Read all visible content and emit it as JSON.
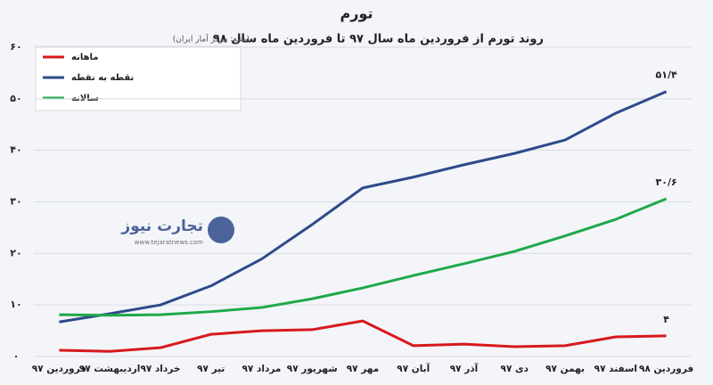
{
  "chart_data": {
    "type": "line",
    "title": "تورم",
    "subtitle": "روند تورم از فروردین ماه سال ۹۷ تا فروردین ماه سال ۹۸",
    "source": "(منبع: مرکز آمار ایران)",
    "watermark": {
      "brand": "تجارت نیوز",
      "url": "www.tejaratnews.com"
    },
    "categories": [
      "فروردین ۹۷",
      "اردیبهشت ۹۷",
      "خرداد ۹۷",
      "تیر ۹۷",
      "مرداد ۹۷",
      "شهریور ۹۷",
      "مهر ۹۷",
      "آبان ۹۷",
      "آذر ۹۷",
      "دی ۹۷",
      "بهمن ۹۷",
      "اسفند ۹۷",
      "فروردین ۹۸"
    ],
    "series": [
      {
        "name": "ماهانه",
        "color": "#d7191c",
        "values": [
          1.2,
          1.0,
          1.7,
          4.3,
          5.0,
          5.2,
          6.9,
          2.1,
          2.4,
          1.9,
          2.1,
          3.8,
          4.0
        ],
        "value_labels": [
          null,
          null,
          null,
          null,
          null,
          null,
          null,
          null,
          null,
          null,
          null,
          null,
          "۴"
        ]
      },
      {
        "name": "نقطه به نقطه",
        "color": "#2e4a8a",
        "values": [
          6.7,
          8.3,
          10.0,
          13.7,
          18.9,
          25.6,
          32.7,
          34.8,
          37.2,
          39.4,
          42.0,
          47.2,
          51.4
        ],
        "value_labels": [
          null,
          null,
          null,
          null,
          null,
          null,
          null,
          null,
          null,
          null,
          null,
          null,
          "۵۱/۴"
        ]
      },
      {
        "name": "سالانه",
        "color": "#1fa84a",
        "values": [
          8.1,
          8.0,
          8.1,
          8.7,
          9.5,
          11.2,
          13.3,
          15.7,
          18.0,
          20.4,
          23.4,
          26.6,
          30.6
        ],
        "value_labels": [
          null,
          null,
          null,
          null,
          null,
          null,
          null,
          null,
          null,
          null,
          null,
          null,
          "۳۰/۶"
        ]
      }
    ],
    "ylim": [
      0,
      60
    ],
    "yticks": [
      {
        "value": 0,
        "label": "۰"
      },
      {
        "value": 10,
        "label": "۱۰"
      },
      {
        "value": 20,
        "label": "۲۰"
      },
      {
        "value": 30,
        "label": "۳۰"
      },
      {
        "value": 40,
        "label": "۴۰"
      },
      {
        "value": 50,
        "label": "۵۰"
      },
      {
        "value": 60,
        "label": "۶۰"
      }
    ],
    "grid": true,
    "legend": "upper left"
  }
}
